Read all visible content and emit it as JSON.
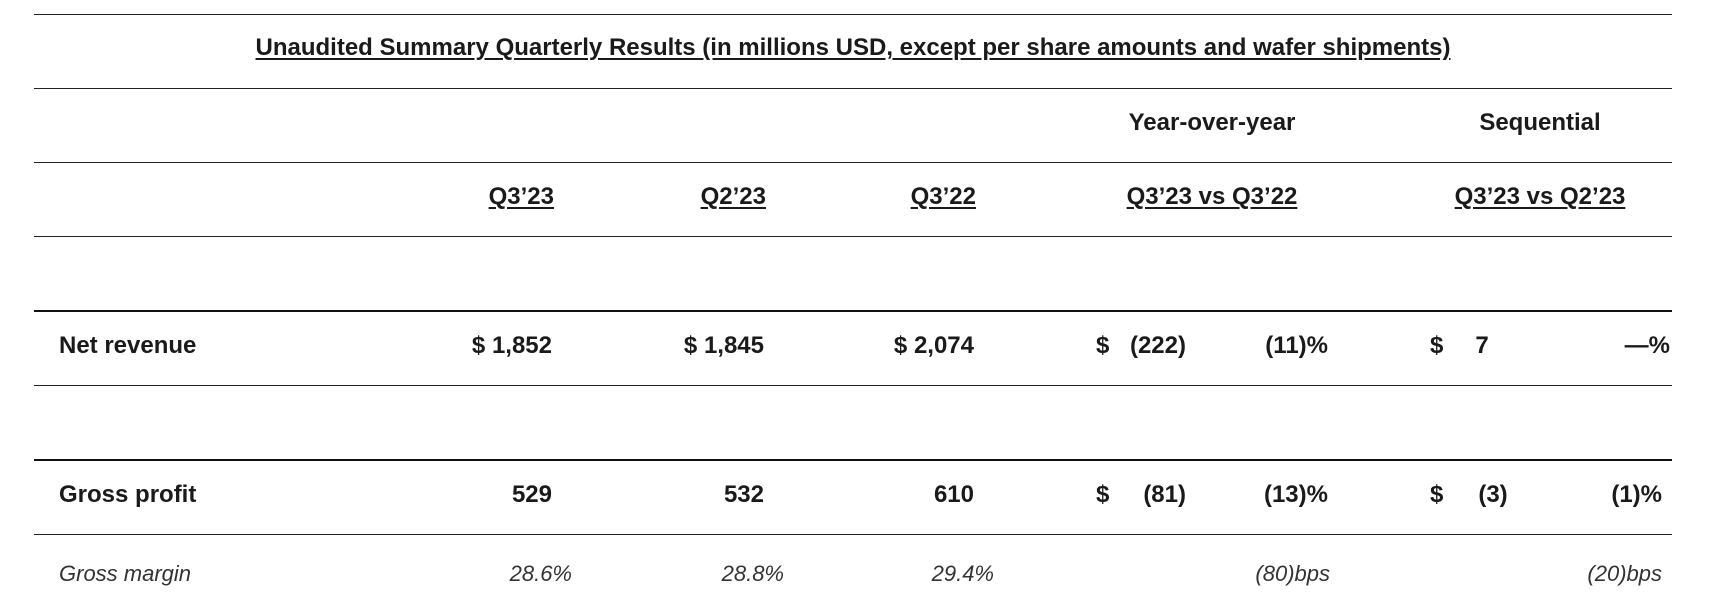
{
  "title": "Unaudited Summary Quarterly Results (in millions USD, except per share amounts and wafer shipments)",
  "groups": {
    "yoy": "Year-over-year",
    "seq": "Sequential"
  },
  "columns": {
    "q3_23": "Q3’23",
    "q2_23": "Q2’23",
    "q3_22": "Q3’22",
    "yoy": "Q3’23 vs Q3’22",
    "seq": "Q3’23 vs Q2’23"
  },
  "rows": {
    "net_revenue": {
      "label": "Net revenue",
      "q3_23": "$ 1,852",
      "q2_23": "$ 1,845",
      "q3_22": "$ 2,074",
      "yoy_currency": "$",
      "yoy_amount": "(222)",
      "yoy_pct": "(11)%",
      "seq_currency": "$",
      "seq_amount": "7",
      "seq_pct": "—%"
    },
    "gross_profit": {
      "label": "Gross profit",
      "q3_23": "529",
      "q2_23": "532",
      "q3_22": "610",
      "yoy_currency": "$",
      "yoy_amount": "(81)",
      "yoy_pct": "(13)%",
      "seq_currency": "$",
      "seq_amount": "(3)",
      "seq_pct": "(1)%"
    },
    "gross_margin": {
      "label": "Gross margin",
      "q3_23": "28.6%",
      "q2_23": "28.8%",
      "q3_22": "29.4%",
      "yoy_bps": "(80)bps",
      "seq_bps": "(20)bps"
    }
  }
}
